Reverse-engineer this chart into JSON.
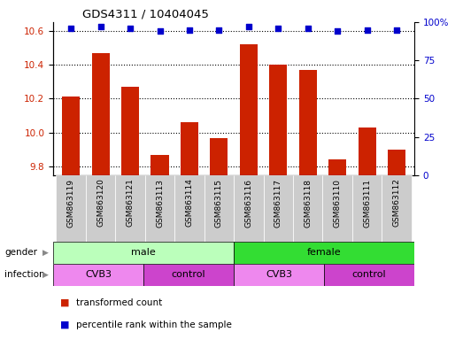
{
  "title": "GDS4311 / 10404045",
  "samples": [
    "GSM863119",
    "GSM863120",
    "GSM863121",
    "GSM863113",
    "GSM863114",
    "GSM863115",
    "GSM863116",
    "GSM863117",
    "GSM863118",
    "GSM863110",
    "GSM863111",
    "GSM863112"
  ],
  "transformed_count": [
    10.21,
    10.47,
    10.27,
    9.87,
    10.06,
    9.97,
    10.52,
    10.4,
    10.37,
    9.84,
    10.03,
    9.9
  ],
  "percentile_rank": [
    96,
    97,
    96,
    94,
    95,
    95,
    97,
    96,
    96,
    94,
    95,
    95
  ],
  "ylim_left": [
    9.75,
    10.65
  ],
  "ylim_right": [
    0,
    100
  ],
  "yticks_left": [
    9.8,
    10.0,
    10.2,
    10.4,
    10.6
  ],
  "yticks_right": [
    0,
    25,
    50,
    75,
    100
  ],
  "bar_color": "#cc2200",
  "dot_color": "#0000cc",
  "gender_groups": [
    {
      "label": "male",
      "start": 0,
      "end": 6,
      "color": "#bbffbb"
    },
    {
      "label": "female",
      "start": 6,
      "end": 12,
      "color": "#33dd33"
    }
  ],
  "infection_groups": [
    {
      "label": "CVB3",
      "start": 0,
      "end": 3,
      "color": "#ee88ee"
    },
    {
      "label": "control",
      "start": 3,
      "end": 6,
      "color": "#cc44cc"
    },
    {
      "label": "CVB3",
      "start": 6,
      "end": 9,
      "color": "#ee88ee"
    },
    {
      "label": "control",
      "start": 9,
      "end": 12,
      "color": "#cc44cc"
    }
  ],
  "legend_items": [
    {
      "label": "transformed count",
      "color": "#cc2200"
    },
    {
      "label": "percentile rank within the sample",
      "color": "#0000cc"
    }
  ],
  "left_tick_color": "#cc2200",
  "right_tick_color": "#0000cc",
  "background_color": "#ffffff",
  "xtick_bg_color": "#cccccc",
  "bar_bottom": 9.75,
  "bar_width": 0.6,
  "dot_size": 18
}
